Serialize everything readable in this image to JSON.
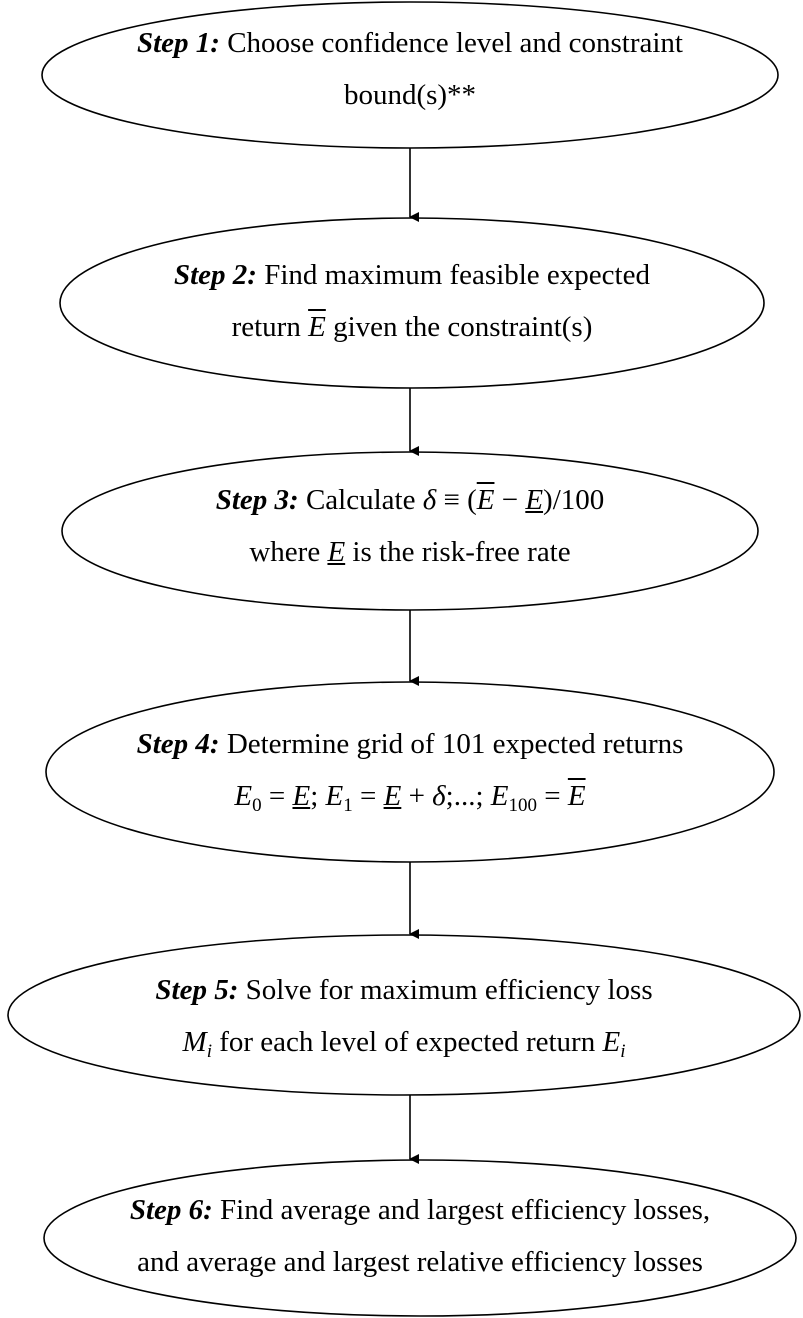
{
  "nodes": [
    {
      "step": "Step 1:",
      "lines": [
        [
          "Choose confidence level and constraint"
        ],
        [
          "bound(s)**"
        ]
      ]
    },
    {
      "step": "Step 2:",
      "lines": [
        [
          "Find maximum feasible expected"
        ],
        [
          "return",
          "E",
          "given the constraint(s)"
        ]
      ]
    },
    {
      "step": "Step 3:",
      "lines": [
        [
          "Calculate",
          "δ",
          "≡ (",
          "E",
          "−",
          "E",
          ")/100"
        ],
        [
          "where",
          "E",
          "is the risk-free rate"
        ]
      ]
    },
    {
      "step": "Step 4:",
      "lines": [
        [
          "Determine grid of 101 expected returns"
        ],
        [
          "E",
          "0",
          "=",
          "E",
          ";",
          "E",
          "1",
          "=",
          "E",
          "+",
          "δ",
          ";...;",
          "E",
          "100",
          "=",
          "E"
        ]
      ]
    },
    {
      "step": "Step 5:",
      "lines": [
        [
          "Solve for maximum efficiency loss"
        ],
        [
          "M",
          "i",
          "for each level of expected return",
          "E",
          "i"
        ]
      ]
    },
    {
      "step": "Step 6:",
      "lines": [
        [
          "Find average and largest efficiency losses,"
        ],
        [
          "and average and largest relative efficiency losses"
        ]
      ]
    }
  ]
}
